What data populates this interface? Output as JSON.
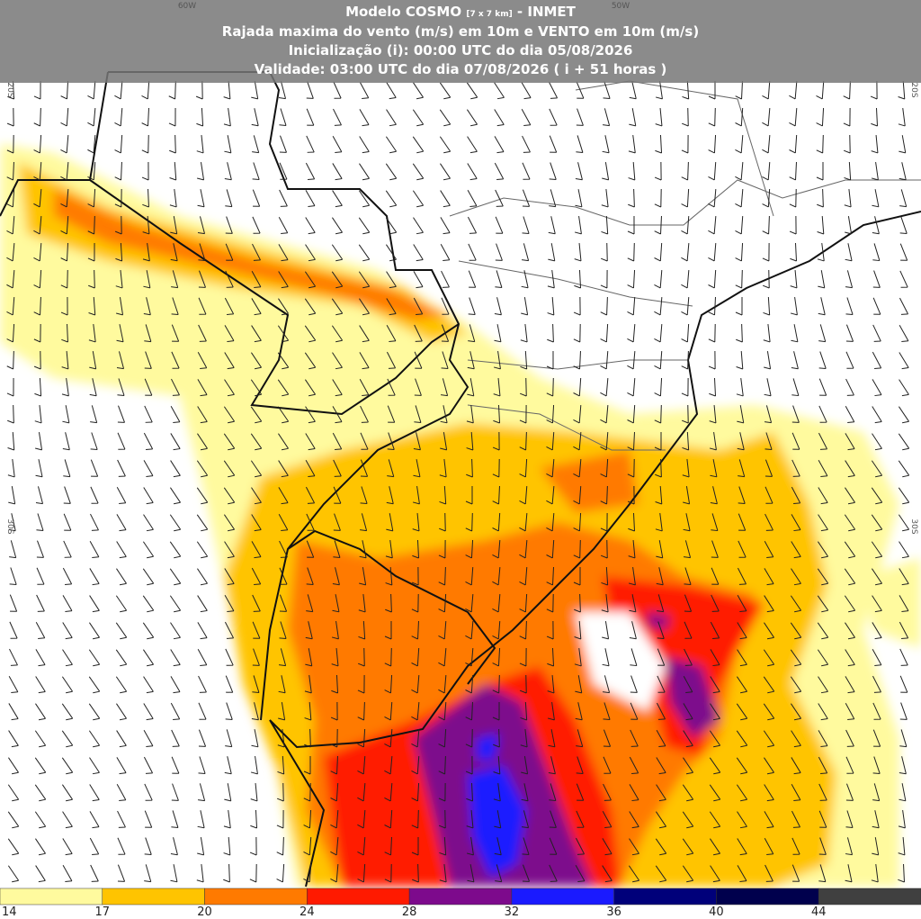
{
  "header": {
    "model": "Modelo COSMO",
    "resolution": "[7 x 7 km]",
    "source": "- INMET",
    "lines": [
      "Rajada maxima do vento (m/s) em 10m e VENTO em 10m (m/s)",
      "Inicialização (i): 00:00 UTC do dia 05/08/2026",
      "Validade: 03:00 UTC do dia 07/08/2026 ( i + 51 horas )"
    ]
  },
  "map_labels": {
    "top": [
      "60W",
      "50W"
    ],
    "left": [
      "20S",
      "30S"
    ],
    "right": [
      "20S",
      "30S"
    ]
  },
  "legend": {
    "labels": [
      "14",
      "17",
      "20",
      "24",
      "28",
      "32",
      "36",
      "40",
      "44"
    ],
    "colors": [
      "#fffa9e",
      "#ffc400",
      "#ff7a00",
      "#ff1a00",
      "#7d0a8c",
      "#1a1aff",
      "#00007a",
      "#00004d",
      "#404040"
    ]
  }
}
